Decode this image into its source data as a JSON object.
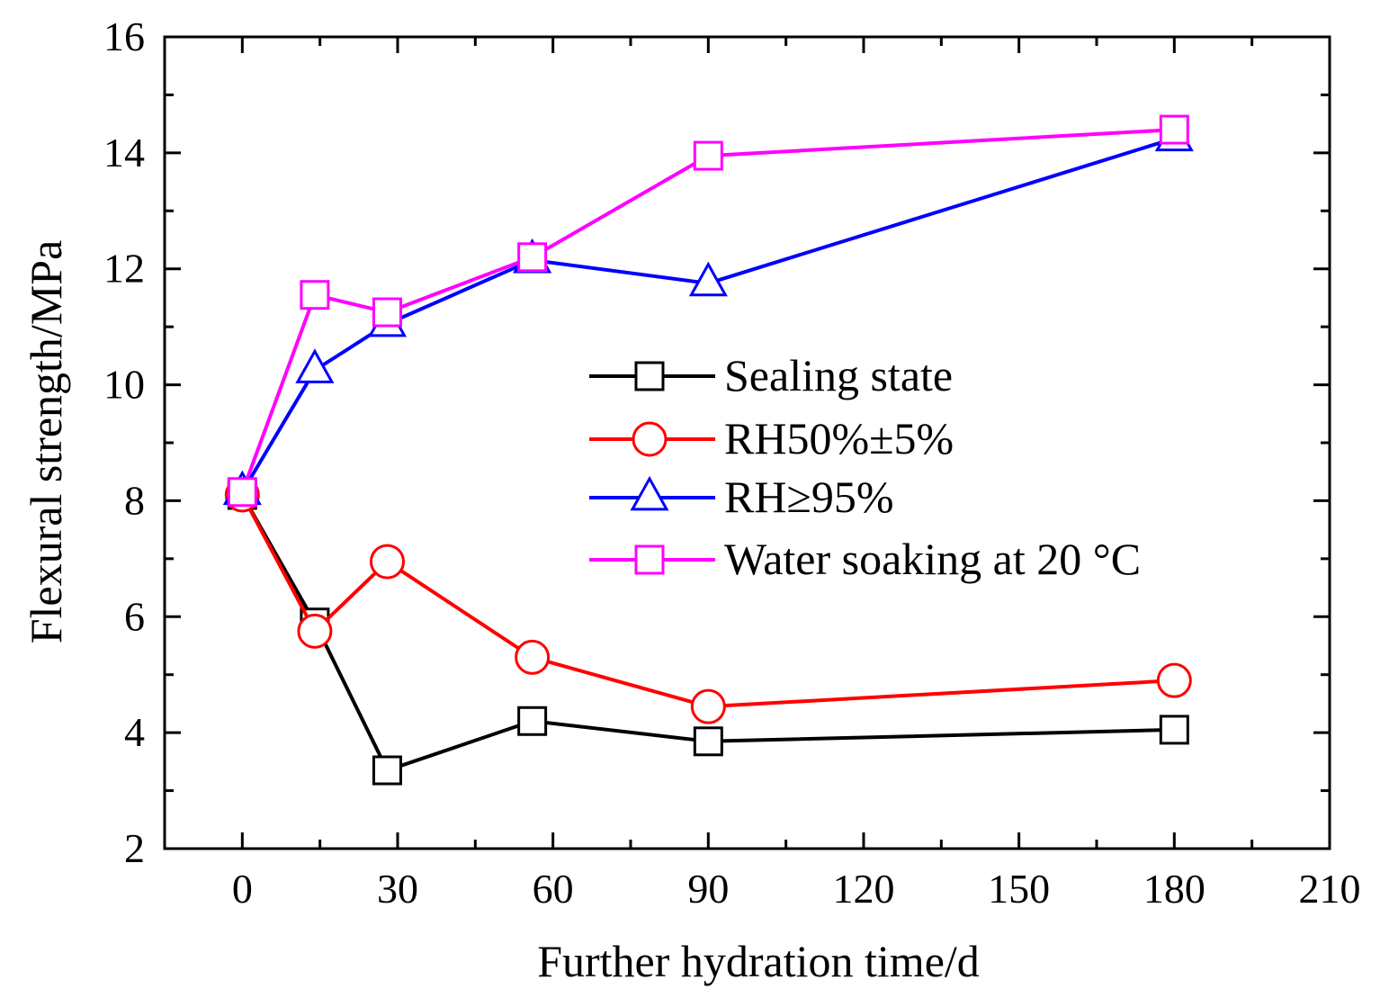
{
  "chart_data": {
    "type": "line",
    "title": "",
    "xlabel": "Further hydration time/d",
    "ylabel": "Flexural strength/MPa",
    "xlim": [
      -15,
      210
    ],
    "ylim": [
      2,
      16
    ],
    "xticks": [
      "0",
      "30",
      "60",
      "90",
      "120",
      "150",
      "180",
      "210"
    ],
    "yticks": [
      "2",
      "4",
      "6",
      "8",
      "10",
      "12",
      "14",
      "16"
    ],
    "x": [
      0,
      14,
      28,
      56,
      90,
      180
    ],
    "grid": false,
    "legend_position": "center-right",
    "series": [
      {
        "name": "Sealing state",
        "marker": "square",
        "color": "#000000",
        "values": [
          8.1,
          5.9,
          3.35,
          4.2,
          3.85,
          4.05
        ]
      },
      {
        "name": "RH50%±5%",
        "marker": "circle",
        "color": "#ff0000",
        "values": [
          8.1,
          5.75,
          6.95,
          5.3,
          4.45,
          4.9
        ]
      },
      {
        "name": "RH≥95%",
        "marker": "triangle",
        "color": "#0000ff",
        "values": [
          8.15,
          10.25,
          11.05,
          12.15,
          11.75,
          14.25
        ]
      },
      {
        "name": "Water soaking at 20 °C",
        "marker": "square",
        "color": "#ff00ff",
        "values": [
          8.15,
          11.55,
          11.25,
          12.2,
          13.95,
          14.4
        ]
      }
    ]
  }
}
